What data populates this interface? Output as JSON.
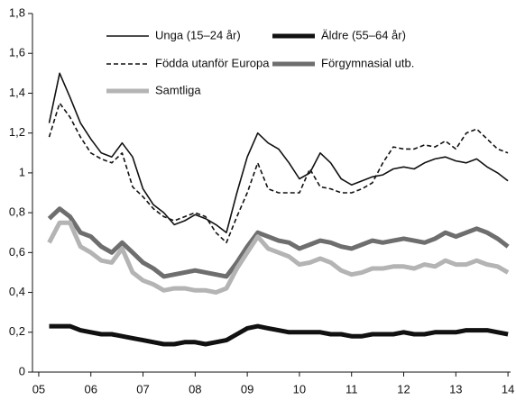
{
  "chart_data": {
    "type": "line",
    "x": [
      5.2,
      5.4,
      5.6,
      5.8,
      6.0,
      6.2,
      6.4,
      6.6,
      6.8,
      7.0,
      7.2,
      7.4,
      7.6,
      7.8,
      8.0,
      8.2,
      8.4,
      8.6,
      8.8,
      9.0,
      9.2,
      9.4,
      9.6,
      9.8,
      10.0,
      10.2,
      10.4,
      10.6,
      10.8,
      11.0,
      11.2,
      11.4,
      11.6,
      11.8,
      12.0,
      12.2,
      12.4,
      12.6,
      12.8,
      13.0,
      13.2,
      13.4,
      13.6,
      13.8,
      14.0
    ],
    "series": [
      {
        "name": "Unga (15–24 år)",
        "color": "#111111",
        "line_style": "solid",
        "weight": "thin",
        "values": [
          1.25,
          1.5,
          1.38,
          1.25,
          1.17,
          1.1,
          1.08,
          1.15,
          1.08,
          0.92,
          0.84,
          0.8,
          0.74,
          0.76,
          0.79,
          0.77,
          0.74,
          0.7,
          0.9,
          1.08,
          1.2,
          1.15,
          1.12,
          1.05,
          0.97,
          1.0,
          1.1,
          1.05,
          0.97,
          0.94,
          0.96,
          0.98,
          0.99,
          1.02,
          1.03,
          1.02,
          1.05,
          1.07,
          1.08,
          1.06,
          1.05,
          1.07,
          1.03,
          1.0,
          0.96
        ]
      },
      {
        "name": "Äldre (55–64 år)",
        "color": "#111111",
        "line_style": "solid",
        "weight": "thick",
        "values": [
          0.23,
          0.23,
          0.23,
          0.21,
          0.2,
          0.19,
          0.19,
          0.18,
          0.17,
          0.16,
          0.15,
          0.14,
          0.14,
          0.15,
          0.15,
          0.14,
          0.15,
          0.16,
          0.19,
          0.22,
          0.23,
          0.22,
          0.21,
          0.2,
          0.2,
          0.2,
          0.2,
          0.19,
          0.19,
          0.18,
          0.18,
          0.19,
          0.19,
          0.19,
          0.2,
          0.19,
          0.19,
          0.2,
          0.2,
          0.2,
          0.21,
          0.21,
          0.21,
          0.2,
          0.19
        ]
      },
      {
        "name": "Födda utanför Europa",
        "color": "#111111",
        "line_style": "dashed",
        "weight": "thin",
        "values": [
          1.18,
          1.35,
          1.28,
          1.18,
          1.1,
          1.07,
          1.05,
          1.1,
          0.93,
          0.88,
          0.82,
          0.78,
          0.76,
          0.78,
          0.8,
          0.78,
          0.7,
          0.65,
          0.78,
          0.9,
          1.05,
          0.92,
          0.9,
          0.9,
          0.9,
          1.02,
          0.93,
          0.92,
          0.9,
          0.9,
          0.92,
          0.95,
          1.05,
          1.13,
          1.12,
          1.12,
          1.14,
          1.13,
          1.16,
          1.12,
          1.2,
          1.22,
          1.17,
          1.12,
          1.1
        ]
      },
      {
        "name": "Förgymnasial utb.",
        "color": "#6e6e6e",
        "line_style": "solid",
        "weight": "thick",
        "values": [
          0.77,
          0.82,
          0.78,
          0.7,
          0.68,
          0.63,
          0.6,
          0.65,
          0.6,
          0.55,
          0.52,
          0.48,
          0.49,
          0.5,
          0.51,
          0.5,
          0.49,
          0.48,
          0.55,
          0.63,
          0.7,
          0.68,
          0.66,
          0.65,
          0.62,
          0.64,
          0.66,
          0.65,
          0.63,
          0.62,
          0.64,
          0.66,
          0.65,
          0.66,
          0.67,
          0.66,
          0.65,
          0.67,
          0.7,
          0.68,
          0.7,
          0.72,
          0.7,
          0.67,
          0.63
        ]
      },
      {
        "name": "Samtliga",
        "color": "#b4b4b4",
        "line_style": "solid",
        "weight": "thick",
        "values": [
          0.65,
          0.75,
          0.75,
          0.63,
          0.6,
          0.56,
          0.55,
          0.62,
          0.5,
          0.46,
          0.44,
          0.41,
          0.42,
          0.42,
          0.41,
          0.41,
          0.4,
          0.42,
          0.52,
          0.6,
          0.68,
          0.62,
          0.6,
          0.58,
          0.54,
          0.55,
          0.57,
          0.55,
          0.51,
          0.49,
          0.5,
          0.52,
          0.52,
          0.53,
          0.53,
          0.52,
          0.54,
          0.53,
          0.56,
          0.54,
          0.54,
          0.56,
          0.54,
          0.53,
          0.5
        ]
      }
    ],
    "xlim": [
      4.88,
      14.05
    ],
    "xticks": [
      {
        "value": 5,
        "label": "05"
      },
      {
        "value": 6,
        "label": "06"
      },
      {
        "value": 7,
        "label": "07"
      },
      {
        "value": 8,
        "label": "08"
      },
      {
        "value": 9,
        "label": "09"
      },
      10,
      11,
      12,
      13,
      14
    ],
    "ylim": [
      0,
      1.8
    ],
    "yticks": [
      0,
      {
        "value": 0.2,
        "label": "0,2"
      },
      {
        "value": 0.4,
        "label": "0,4"
      },
      {
        "value": 0.6,
        "label": "0,6"
      },
      {
        "value": 0.8,
        "label": "0,8"
      },
      1,
      {
        "value": 1.2,
        "label": "1,2"
      },
      {
        "value": 1.4,
        "label": "1,4"
      },
      {
        "value": 1.6,
        "label": "1,6"
      },
      {
        "value": 1.8,
        "label": "1,8"
      }
    ],
    "grid": false,
    "legend": "top"
  }
}
